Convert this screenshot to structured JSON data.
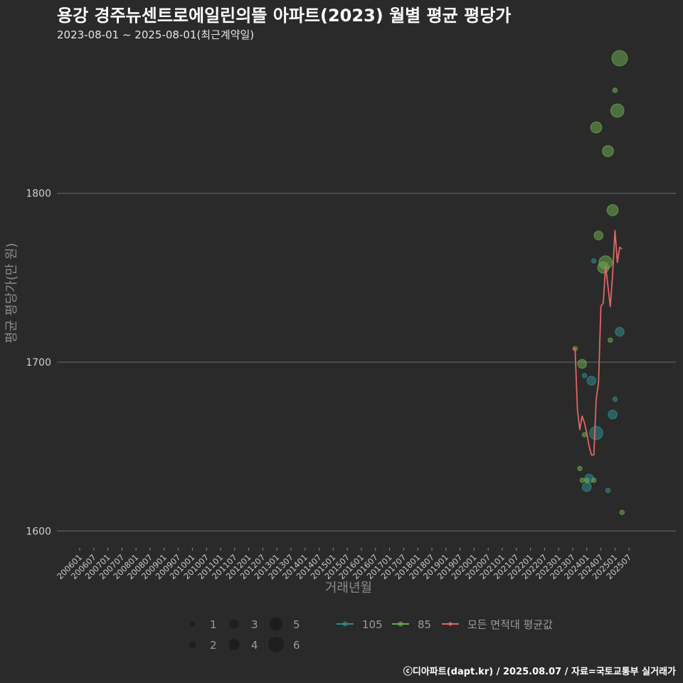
{
  "chart_data": {
    "type": "scatter",
    "title": "용강 경주뉴센트로에일린의뜰 아파트(2023) 월별 평균 평당가",
    "subtitle": "2023-08-01 ~ 2025-08-01(최근계약일)",
    "xlabel": "거래년월",
    "ylabel": "평균 평당가(만 원)",
    "ylim": [
      1590,
      1885
    ],
    "yticks": [
      1600,
      1700,
      1800
    ],
    "x_tick_labels": [
      "200601",
      "200607",
      "200701",
      "200707",
      "200801",
      "200807",
      "200901",
      "200907",
      "201001",
      "201007",
      "201101",
      "201107",
      "201201",
      "201207",
      "201301",
      "201307",
      "201401",
      "201407",
      "201501",
      "201507",
      "201601",
      "201607",
      "201701",
      "201707",
      "201801",
      "201807",
      "201901",
      "201907",
      "202001",
      "202007",
      "202101",
      "202107",
      "202201",
      "202207",
      "202301",
      "202307",
      "202401",
      "202407",
      "202501",
      "202507"
    ],
    "grid": true,
    "series": [
      {
        "name": "105",
        "color": "#2e8b8b",
        "points": [
          {
            "month": "2023-12",
            "value": 1692,
            "count": 1
          },
          {
            "month": "2024-01",
            "value": 1626,
            "count": 3
          },
          {
            "month": "2024-02",
            "value": 1631,
            "count": 3
          },
          {
            "month": "2024-03",
            "value": 1689,
            "count": 3
          },
          {
            "month": "2024-05",
            "value": 1658,
            "count": 5
          },
          {
            "month": "2024-04",
            "value": 1760,
            "count": 1
          },
          {
            "month": "2024-10",
            "value": 1624,
            "count": 1
          },
          {
            "month": "2024-12",
            "value": 1669,
            "count": 3
          },
          {
            "month": "2025-01",
            "value": 1678,
            "count": 1
          },
          {
            "month": "2025-03",
            "value": 1718,
            "count": 3
          }
        ]
      },
      {
        "name": "85",
        "color": "#6aa84f",
        "points": [
          {
            "month": "2023-08",
            "value": 1708,
            "count": 1
          },
          {
            "month": "2023-10",
            "value": 1637,
            "count": 1
          },
          {
            "month": "2023-11",
            "value": 1630,
            "count": 1
          },
          {
            "month": "2023-11",
            "value": 1699,
            "count": 3
          },
          {
            "month": "2023-12",
            "value": 1657,
            "count": 1
          },
          {
            "month": "2024-01",
            "value": 1630,
            "count": 1
          },
          {
            "month": "2024-04",
            "value": 1630,
            "count": 1
          },
          {
            "month": "2024-05",
            "value": 1839,
            "count": 4
          },
          {
            "month": "2024-06",
            "value": 1775,
            "count": 3
          },
          {
            "month": "2024-08",
            "value": 1756,
            "count": 4
          },
          {
            "month": "2024-09",
            "value": 1759,
            "count": 5
          },
          {
            "month": "2024-10",
            "value": 1825,
            "count": 4
          },
          {
            "month": "2024-11",
            "value": 1713,
            "count": 1
          },
          {
            "month": "2024-12",
            "value": 1790,
            "count": 4
          },
          {
            "month": "2025-01",
            "value": 1861,
            "count": 1
          },
          {
            "month": "2025-02",
            "value": 1849,
            "count": 5
          },
          {
            "month": "2025-03",
            "value": 1880,
            "count": 6
          },
          {
            "month": "2025-04",
            "value": 1611,
            "count": 1
          }
        ]
      },
      {
        "name": "모든 면적대 평균값",
        "color": "#e06666",
        "type": "line",
        "points": [
          {
            "month": "2023-07",
            "value": 1708
          },
          {
            "month": "2023-08",
            "value": 1708
          },
          {
            "month": "2023-09",
            "value": 1672
          },
          {
            "month": "2023-10",
            "value": 1660
          },
          {
            "month": "2023-11",
            "value": 1668
          },
          {
            "month": "2023-12",
            "value": 1664
          },
          {
            "month": "2024-01",
            "value": 1658
          },
          {
            "month": "2024-02",
            "value": 1650
          },
          {
            "month": "2024-03",
            "value": 1645
          },
          {
            "month": "2024-04",
            "value": 1645
          },
          {
            "month": "2024-05",
            "value": 1678
          },
          {
            "month": "2024-06",
            "value": 1688
          },
          {
            "month": "2024-07",
            "value": 1733
          },
          {
            "month": "2024-08",
            "value": 1735
          },
          {
            "month": "2024-09",
            "value": 1757
          },
          {
            "month": "2024-10",
            "value": 1745
          },
          {
            "month": "2024-11",
            "value": 1733
          },
          {
            "month": "2024-12",
            "value": 1752
          },
          {
            "month": "2025-01",
            "value": 1778
          },
          {
            "month": "2025-02",
            "value": 1759
          },
          {
            "month": "2025-03",
            "value": 1768
          },
          {
            "month": "2025-04",
            "value": 1767
          }
        ]
      }
    ],
    "size_legend": [
      1,
      2,
      3,
      4,
      5,
      6
    ],
    "legend_position": "bottom",
    "caption": "ⓒ디아파트(dapt.kr) / 2025.08.07 / 자료=국토교통부 실거래가"
  }
}
